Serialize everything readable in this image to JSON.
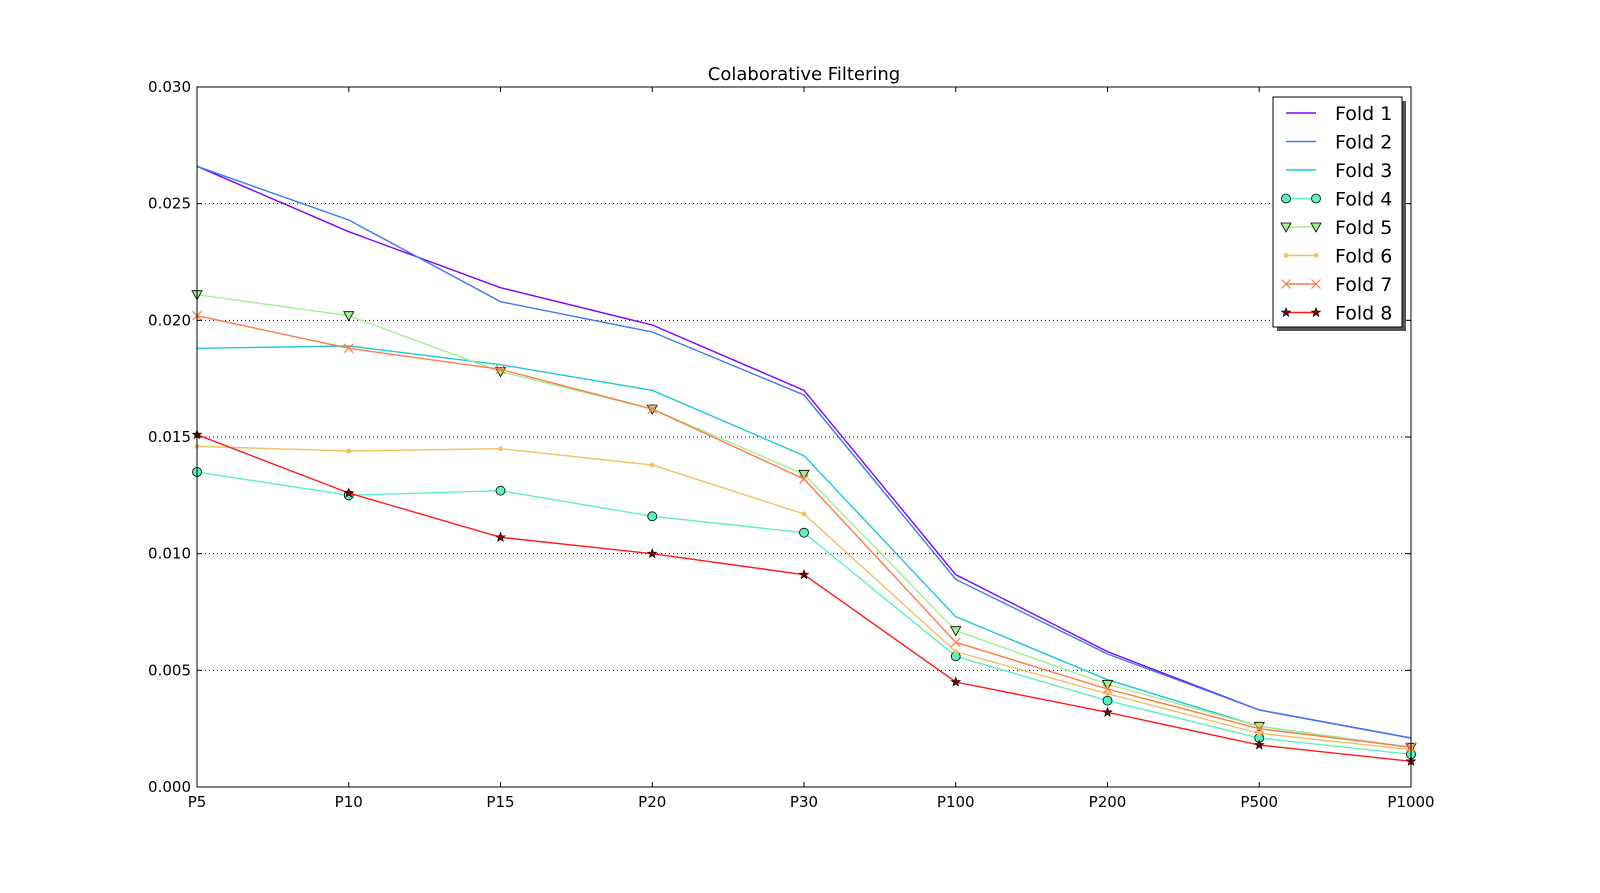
{
  "chart_data": {
    "type": "line",
    "title": "Colaborative Filtering",
    "xlabel": "",
    "ylabel": "",
    "categories": [
      "P5",
      "P10",
      "P15",
      "P20",
      "P30",
      "P100",
      "P200",
      "P500",
      "P1000"
    ],
    "ylim": [
      0,
      0.03
    ],
    "yticks": [
      "0.000",
      "0.005",
      "0.010",
      "0.015",
      "0.020",
      "0.025",
      "0.030"
    ],
    "grid": "horizontal dotted",
    "legend_position": "top-right",
    "series": [
      {
        "name": "Fold 1",
        "color": "#8000ff",
        "marker": "none",
        "values": [
          0.0266,
          0.0238,
          0.0214,
          0.0198,
          0.017,
          0.0091,
          0.0058,
          0.0033,
          0.0021
        ]
      },
      {
        "name": "Fold 2",
        "color": "#3a7bf0",
        "marker": "none",
        "values": [
          0.0266,
          0.0243,
          0.0208,
          0.0195,
          0.0168,
          0.0089,
          0.0057,
          0.0033,
          0.0021
        ]
      },
      {
        "name": "Fold 3",
        "color": "#1cc7d9",
        "marker": "none",
        "values": [
          0.0188,
          0.0189,
          0.0181,
          0.017,
          0.0142,
          0.0073,
          0.0046,
          0.0026,
          0.0017
        ]
      },
      {
        "name": "Fold 4",
        "color": "#5cf0c0",
        "marker": "circle",
        "values": [
          0.0135,
          0.0125,
          0.0127,
          0.0116,
          0.0109,
          0.0056,
          0.0037,
          0.0021,
          0.0014
        ]
      },
      {
        "name": "Fold 5",
        "color": "#a0f08f",
        "marker": "triangle-down",
        "values": [
          0.0211,
          0.0202,
          0.0178,
          0.0162,
          0.0134,
          0.0067,
          0.0044,
          0.0026,
          0.0017
        ]
      },
      {
        "name": "Fold 6",
        "color": "#f0c060",
        "marker": "point",
        "values": [
          0.0146,
          0.0144,
          0.0145,
          0.0138,
          0.0117,
          0.0058,
          0.004,
          0.0023,
          0.0016
        ]
      },
      {
        "name": "Fold 7",
        "color": "#ff7a45",
        "marker": "x",
        "values": [
          0.0202,
          0.0188,
          0.0179,
          0.0162,
          0.0132,
          0.0062,
          0.0042,
          0.0025,
          0.0017
        ]
      },
      {
        "name": "Fold 8",
        "color": "#ff1a1a",
        "marker": "star",
        "values": [
          0.0151,
          0.0126,
          0.0107,
          0.01,
          0.0091,
          0.0045,
          0.0032,
          0.0018,
          0.0011
        ]
      }
    ]
  }
}
